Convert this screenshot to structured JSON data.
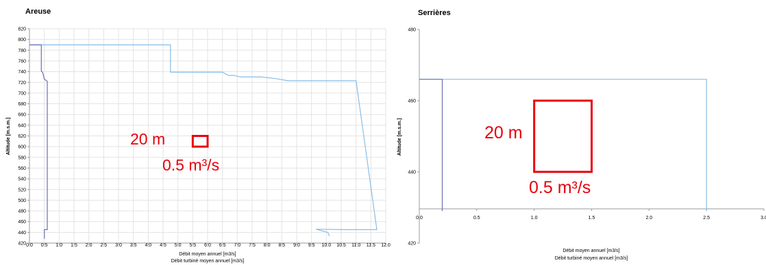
{
  "chart_data": [
    {
      "type": "line",
      "title": "Areuse",
      "xlabel": "Débit moyen annuel [m3/s]",
      "xlabel2": "Débit turbiné moyen annuel [m3/s]",
      "ylabel": "Altitude  [m.s.m.]",
      "xlim": [
        0,
        12
      ],
      "ylim": [
        420,
        820
      ],
      "x_ticks": [
        "0.0",
        "0.5",
        "1.0",
        "1.5",
        "2.0",
        "2.5",
        "3.0",
        "3.5",
        "4.0",
        "4.5",
        "5.0",
        "5.5",
        "6.0",
        "6.5",
        "7.0",
        "7.5",
        "8.0",
        "8.5",
        "9.0",
        "9.5",
        "10.0",
        "10.5",
        "11.0",
        "11.5",
        "12.0"
      ],
      "y_ticks": [
        "420",
        "440",
        "460",
        "480",
        "500",
        "520",
        "540",
        "560",
        "580",
        "600",
        "620",
        "640",
        "660",
        "680",
        "700",
        "720",
        "740",
        "760",
        "780",
        "800",
        "820"
      ],
      "grid": true,
      "series": [
        {
          "color": "#88bde6",
          "points": [
            [
              0.0,
              790
            ],
            [
              4.75,
              790
            ],
            [
              4.75,
              739
            ],
            [
              6.5,
              739
            ],
            [
              6.7,
              733
            ],
            [
              6.9,
              733
            ],
            [
              7.1,
              730
            ],
            [
              7.8,
              730
            ],
            [
              8.3,
              727
            ],
            [
              8.7,
              723
            ],
            [
              11.0,
              723
            ],
            [
              11.7,
              445
            ],
            [
              10.6,
              445
            ],
            [
              9.65,
              446
            ],
            [
              10.05,
              440
            ],
            [
              10.1,
              433
            ]
          ]
        },
        {
          "color": "#6b6fb3",
          "points": [
            [
              0.4,
              790
            ],
            [
              0.4,
              741
            ],
            [
              0.44,
              739
            ],
            [
              0.47,
              733
            ],
            [
              0.5,
              726
            ],
            [
              0.6,
              722
            ],
            [
              0.6,
              445
            ],
            [
              0.5,
              445
            ],
            [
              0.5,
              428
            ]
          ]
        },
        {
          "color": "#6b6fb3",
          "points": [
            [
              0.0,
              790
            ],
            [
              0.4,
              790
            ]
          ]
        }
      ],
      "annotations": {
        "height_label": "20 m",
        "flow_label": "0.5 m³/s",
        "scale_box": {
          "x": [
            5.5,
            6.0
          ],
          "y": [
            600,
            620
          ]
        }
      }
    },
    {
      "type": "line",
      "title": "Serrières",
      "xlabel": "Débit moyen annuel [m3/s]",
      "xlabel2": "Débit turbiné moyen annuel [m3/s]",
      "ylabel": "Altitude  [m.s.m.]",
      "xlim": [
        0,
        3
      ],
      "ylim": [
        420,
        480
      ],
      "x_ticks": [
        "0.0",
        "0.5",
        "1.0",
        "1.5",
        "2.0",
        "2.5",
        "3.0"
      ],
      "y_ticks": [
        "420",
        "440",
        "460",
        "480"
      ],
      "grid": false,
      "series": [
        {
          "color": "#88bde6",
          "points": [
            [
              0.0,
              466
            ],
            [
              2.5,
              466
            ],
            [
              2.5,
              429
            ]
          ]
        },
        {
          "color": "#6b6fb3",
          "points": [
            [
              0.0,
              466
            ],
            [
              0.2,
              466
            ],
            [
              0.2,
              429
            ]
          ]
        }
      ],
      "annotations": {
        "height_label": "20 m",
        "flow_label": "0.5 m³/s",
        "scale_box": {
          "x": [
            1.0,
            1.5
          ],
          "y": [
            440,
            460
          ]
        }
      }
    }
  ]
}
